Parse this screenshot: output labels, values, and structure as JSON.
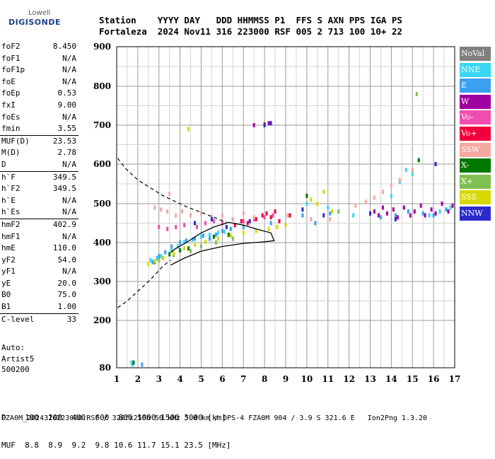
{
  "header": {
    "logo_top": "Lowell",
    "logo_bottom": "DIGISONDE",
    "line1": "Station    YYYY DAY   DDD HHMMSS P1  FFS S AXN PPS IGA PS",
    "line2": "Fortaleza  2024 Nov11 316 223000 RSF 005 2 713 100 10+ 22"
  },
  "parameters": [
    {
      "name": "foF2",
      "value": "8.450"
    },
    {
      "name": "foF1",
      "value": "N/A"
    },
    {
      "name": "foF1p",
      "value": "N/A"
    },
    {
      "name": "foE",
      "value": "N/A"
    },
    {
      "name": "foEp",
      "value": "0.53"
    },
    {
      "name": "fxI",
      "value": "9.00"
    },
    {
      "name": "foEs",
      "value": "N/A"
    },
    {
      "name": "fmin",
      "value": "3.55"
    },
    {
      "name": "MUF(D)",
      "value": "23.53",
      "sep": true
    },
    {
      "name": "M(D)",
      "value": "2.78"
    },
    {
      "name": "D",
      "value": "N/A"
    },
    {
      "name": "h`F",
      "value": "349.5",
      "sep": true
    },
    {
      "name": "h`F2",
      "value": "349.5"
    },
    {
      "name": "h`E",
      "value": "N/A"
    },
    {
      "name": "h`Es",
      "value": "N/A"
    },
    {
      "name": "hmF2",
      "value": "402.9",
      "sep": true
    },
    {
      "name": "hmF1",
      "value": "N/A"
    },
    {
      "name": "hmE",
      "value": "110.0"
    },
    {
      "name": "yF2",
      "value": "54.0"
    },
    {
      "name": "yF1",
      "value": "N/A"
    },
    {
      "name": "yE",
      "value": "20.0"
    },
    {
      "name": "B0",
      "value": "75.0"
    },
    {
      "name": "B1",
      "value": "1.00"
    },
    {
      "name": "C-level",
      "value": "33",
      "sep": true
    }
  ],
  "auto_block": {
    "line1": "Auto:",
    "line2": "Artist5",
    "line3": "500200"
  },
  "distance_table": {
    "d_row": "D    100  200  400  600  800 1000 1500 3000 [km]",
    "muf_row": "MUF  8.8  8.9  9.2  9.8 10.6 11.7 15.1 23.5 [MHz]"
  },
  "footer": "FZA0M_2024316223000.RSF / 320fx256h 50 kHz 5.0 km / DPS-4 FZA0M 904 / 3.9 S 321.6 E   Ion2Png 1.3.20",
  "legend": [
    {
      "label": "NoVal",
      "color": "#808080"
    },
    {
      "label": "NNE",
      "color": "#3ad6f5"
    },
    {
      "label": "E",
      "color": "#3aa0f0"
    },
    {
      "label": "W",
      "color": "#a000a0"
    },
    {
      "label": "Vo-",
      "color": "#f04db0"
    },
    {
      "label": "Vo+",
      "color": "#f0003c"
    },
    {
      "label": "SSW",
      "color": "#f4a8a0"
    },
    {
      "label": "X-",
      "color": "#007800"
    },
    {
      "label": "X+",
      "color": "#80c050"
    },
    {
      "label": "SSE",
      "color": "#d8d800"
    },
    {
      "label": "NNW",
      "color": "#2c2ccc"
    }
  ],
  "chart_data": {
    "type": "scatter",
    "xlim": [
      1,
      17
    ],
    "ylim": [
      80,
      900
    ],
    "x_ticks": [
      1,
      2,
      3,
      4,
      5,
      6,
      7,
      8,
      9,
      10,
      11,
      12,
      13,
      14,
      15,
      16,
      17
    ],
    "y_ticks": [
      80,
      200,
      300,
      400,
      500,
      600,
      700,
      800,
      900
    ],
    "grid": true,
    "series": [
      {
        "name": "NNE",
        "color": "#3ad6f5",
        "points": [
          [
            1.7,
            93
          ],
          [
            1.75,
            88
          ],
          [
            2.6,
            355
          ],
          [
            2.9,
            360
          ],
          [
            3.1,
            365
          ],
          [
            3.6,
            380
          ],
          [
            3.9,
            390
          ],
          [
            4.2,
            402
          ],
          [
            4.6,
            408
          ],
          [
            5.0,
            415
          ],
          [
            5.4,
            420
          ],
          [
            5.8,
            425
          ],
          [
            6.1,
            428
          ],
          [
            10.0,
            500
          ],
          [
            11.0,
            490
          ],
          [
            12.2,
            470
          ],
          [
            14.0,
            520
          ],
          [
            14.4,
            555
          ],
          [
            14.7,
            585
          ],
          [
            15.0,
            575
          ],
          [
            15.3,
            610
          ],
          [
            15.8,
            470
          ],
          [
            16.3,
            480
          ],
          [
            16.8,
            490
          ]
        ]
      },
      {
        "name": "E",
        "color": "#3aa0f0",
        "points": [
          [
            2.2,
            88
          ],
          [
            2.7,
            350
          ],
          [
            3.0,
            365
          ],
          [
            3.3,
            375
          ],
          [
            3.6,
            390
          ],
          [
            4.0,
            400
          ],
          [
            4.3,
            405
          ],
          [
            4.7,
            410
          ],
          [
            5.1,
            418
          ],
          [
            5.4,
            410
          ],
          [
            5.7,
            420
          ],
          [
            6.0,
            430
          ],
          [
            6.4,
            435
          ],
          [
            7.0,
            440
          ],
          [
            8.3,
            450
          ],
          [
            9.8,
            470
          ],
          [
            10.4,
            450
          ],
          [
            11.1,
            475
          ],
          [
            13.5,
            465
          ],
          [
            14.2,
            470
          ],
          [
            14.8,
            480
          ],
          [
            15.5,
            475
          ],
          [
            16.0,
            470
          ],
          [
            16.6,
            485
          ]
        ]
      },
      {
        "name": "W",
        "color": "#a000a0",
        "points": [
          [
            13.2,
            480
          ],
          [
            13.4,
            470
          ],
          [
            13.6,
            490
          ],
          [
            13.8,
            475
          ],
          [
            14.1,
            485
          ],
          [
            14.3,
            465
          ],
          [
            14.6,
            490
          ],
          [
            14.9,
            470
          ],
          [
            15.1,
            480
          ],
          [
            15.4,
            495
          ],
          [
            15.6,
            470
          ],
          [
            15.9,
            485
          ],
          [
            16.1,
            475
          ],
          [
            16.4,
            500
          ],
          [
            16.7,
            480
          ],
          [
            16.9,
            495
          ],
          [
            7.5,
            700
          ],
          [
            8.0,
            702
          ],
          [
            8.2,
            705
          ]
        ]
      },
      {
        "name": "Vo-",
        "color": "#f04db0",
        "points": [
          [
            3.0,
            440
          ],
          [
            3.4,
            435
          ],
          [
            3.8,
            440
          ],
          [
            4.2,
            445
          ],
          [
            4.8,
            440
          ],
          [
            5.2,
            450
          ],
          [
            5.6,
            455
          ],
          [
            6.0,
            450
          ],
          [
            6.5,
            460
          ],
          [
            7.0,
            455
          ],
          [
            7.5,
            460
          ],
          [
            8.0,
            465
          ],
          [
            8.4,
            470
          ]
        ]
      },
      {
        "name": "Vo+",
        "color": "#f0003c",
        "points": [
          [
            6.6,
            445
          ],
          [
            6.9,
            455
          ],
          [
            7.2,
            450
          ],
          [
            7.6,
            460
          ],
          [
            7.9,
            470
          ],
          [
            8.1,
            475
          ],
          [
            8.3,
            465
          ],
          [
            8.5,
            480
          ],
          [
            8.7,
            455
          ],
          [
            9.2,
            470
          ]
        ]
      },
      {
        "name": "SSW",
        "color": "#f4a8a0",
        "points": [
          [
            2.8,
            490
          ],
          [
            3.1,
            485
          ],
          [
            3.4,
            480
          ],
          [
            3.8,
            470
          ],
          [
            4.1,
            480
          ],
          [
            4.5,
            470
          ],
          [
            5.0,
            475
          ],
          [
            5.5,
            465
          ],
          [
            6.0,
            470
          ],
          [
            6.5,
            460
          ],
          [
            7.0,
            475
          ],
          [
            7.5,
            465
          ],
          [
            9.1,
            470
          ],
          [
            10.2,
            460
          ],
          [
            11.1,
            460
          ],
          [
            12.3,
            495
          ],
          [
            12.8,
            505
          ],
          [
            13.2,
            515
          ],
          [
            13.6,
            530
          ],
          [
            14.0,
            545
          ],
          [
            14.4,
            560
          ],
          [
            15.0,
            585
          ],
          [
            3.5,
            525
          ]
        ]
      },
      {
        "name": "X-",
        "color": "#007800",
        "points": [
          [
            1.8,
            93
          ],
          [
            2.8,
            350
          ],
          [
            3.2,
            360
          ],
          [
            3.5,
            370
          ],
          [
            4.0,
            380
          ],
          [
            4.4,
            385
          ],
          [
            5.6,
            415
          ],
          [
            6.3,
            420
          ],
          [
            10.0,
            520
          ],
          [
            15.3,
            610
          ]
        ]
      },
      {
        "name": "X+",
        "color": "#80c050",
        "points": [
          [
            3.0,
            355
          ],
          [
            3.7,
            368
          ],
          [
            4.5,
            378
          ],
          [
            5.0,
            390
          ],
          [
            5.7,
            400
          ],
          [
            6.5,
            410
          ],
          [
            11.5,
            480
          ],
          [
            15.2,
            780
          ]
        ]
      },
      {
        "name": "SSE",
        "color": "#d8d800",
        "points": [
          [
            2.5,
            345
          ],
          [
            2.8,
            352
          ],
          [
            3.2,
            360
          ],
          [
            3.7,
            372
          ],
          [
            4.2,
            385
          ],
          [
            4.7,
            395
          ],
          [
            5.2,
            402
          ],
          [
            5.8,
            410
          ],
          [
            6.4,
            418
          ],
          [
            7.0,
            425
          ],
          [
            7.6,
            430
          ],
          [
            8.2,
            435
          ],
          [
            8.6,
            440
          ],
          [
            9.0,
            445
          ],
          [
            10.2,
            510
          ],
          [
            10.5,
            500
          ],
          [
            10.8,
            530
          ],
          [
            11.2,
            480
          ],
          [
            4.4,
            690
          ]
        ]
      },
      {
        "name": "NNW",
        "color": "#2c2ccc",
        "points": [
          [
            4.7,
            450
          ],
          [
            5.5,
            460
          ],
          [
            6.2,
            440
          ],
          [
            7.3,
            455
          ],
          [
            8.0,
            700
          ],
          [
            8.3,
            705
          ],
          [
            9.8,
            485
          ],
          [
            10.8,
            470
          ],
          [
            13.0,
            475
          ],
          [
            14.2,
            460
          ],
          [
            16.1,
            600
          ]
        ]
      }
    ],
    "trace_solid": [
      [
        3.55,
        342
      ],
      [
        4.2,
        360
      ],
      [
        5.0,
        378
      ],
      [
        6.0,
        390
      ],
      [
        7.0,
        398
      ],
      [
        8.0,
        402
      ],
      [
        8.45,
        405
      ],
      [
        8.3,
        425
      ],
      [
        7.6,
        435
      ],
      [
        7.0,
        445
      ],
      [
        6.3,
        452
      ],
      [
        5.6,
        440
      ],
      [
        5.0,
        425
      ],
      [
        4.3,
        400
      ],
      [
        3.8,
        385
      ],
      [
        3.55,
        375
      ]
    ],
    "trace_dashed_upper": [
      [
        1.05,
        615
      ],
      [
        1.4,
        590
      ],
      [
        2.0,
        560
      ],
      [
        2.6,
        540
      ],
      [
        3.2,
        520
      ],
      [
        3.8,
        505
      ],
      [
        4.4,
        490
      ],
      [
        5.0,
        478
      ],
      [
        5.6,
        465
      ],
      [
        6.2,
        452
      ]
    ],
    "trace_dashed_lower": [
      [
        1.05,
        233
      ],
      [
        1.5,
        250
      ],
      [
        2.0,
        275
      ],
      [
        2.6,
        305
      ],
      [
        3.2,
        340
      ],
      [
        3.55,
        355
      ]
    ]
  }
}
